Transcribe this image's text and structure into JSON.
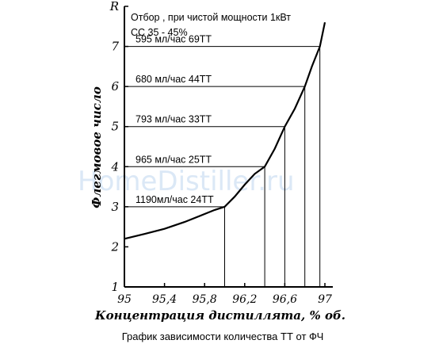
{
  "watermark": "HomeDistiller.ru",
  "chart_data": {
    "type": "line",
    "title": "График зависимости количества ТТ от ФЧ",
    "xlabel": "Концентрация дистиллята, % об.",
    "ylabel": "Флегмовое число",
    "xlim": [
      95,
      97
    ],
    "ylim": [
      1,
      8
    ],
    "x_ticks": [
      "95",
      "95,4",
      "95,8",
      "96,2",
      "96,6",
      "97"
    ],
    "y_ticks": [
      "1",
      "2",
      "3",
      "4",
      "5",
      "6",
      "7",
      "R"
    ],
    "header_lines": [
      "Отбор , при чистой  мощности 1кВт",
      "СС 35 - 45%"
    ],
    "series": [
      {
        "x": [
          95.0,
          95.2,
          95.4,
          95.6,
          95.8,
          95.9,
          96.0,
          96.1,
          96.2,
          96.3,
          96.4,
          96.5,
          96.6,
          96.7,
          96.8,
          96.87,
          96.95,
          97.0
        ],
        "y": [
          2.2,
          2.32,
          2.45,
          2.62,
          2.82,
          2.92,
          3.0,
          3.25,
          3.55,
          3.82,
          4.0,
          4.45,
          5.0,
          5.45,
          6.0,
          6.5,
          7.0,
          7.6
        ]
      }
    ],
    "reference_points": [
      {
        "x": 96.0,
        "y": 3,
        "label": "1190мл/час   24ТТ"
      },
      {
        "x": 96.4,
        "y": 4,
        "label": "965 мл/час    25ТТ"
      },
      {
        "x": 96.6,
        "y": 5,
        "label": "793 мл/час    33ТТ"
      },
      {
        "x": 96.8,
        "y": 6,
        "label": "680 мл/час    44ТТ"
      },
      {
        "x": 96.95,
        "y": 7,
        "label": "595 мл/час    69ТТ"
      }
    ]
  }
}
